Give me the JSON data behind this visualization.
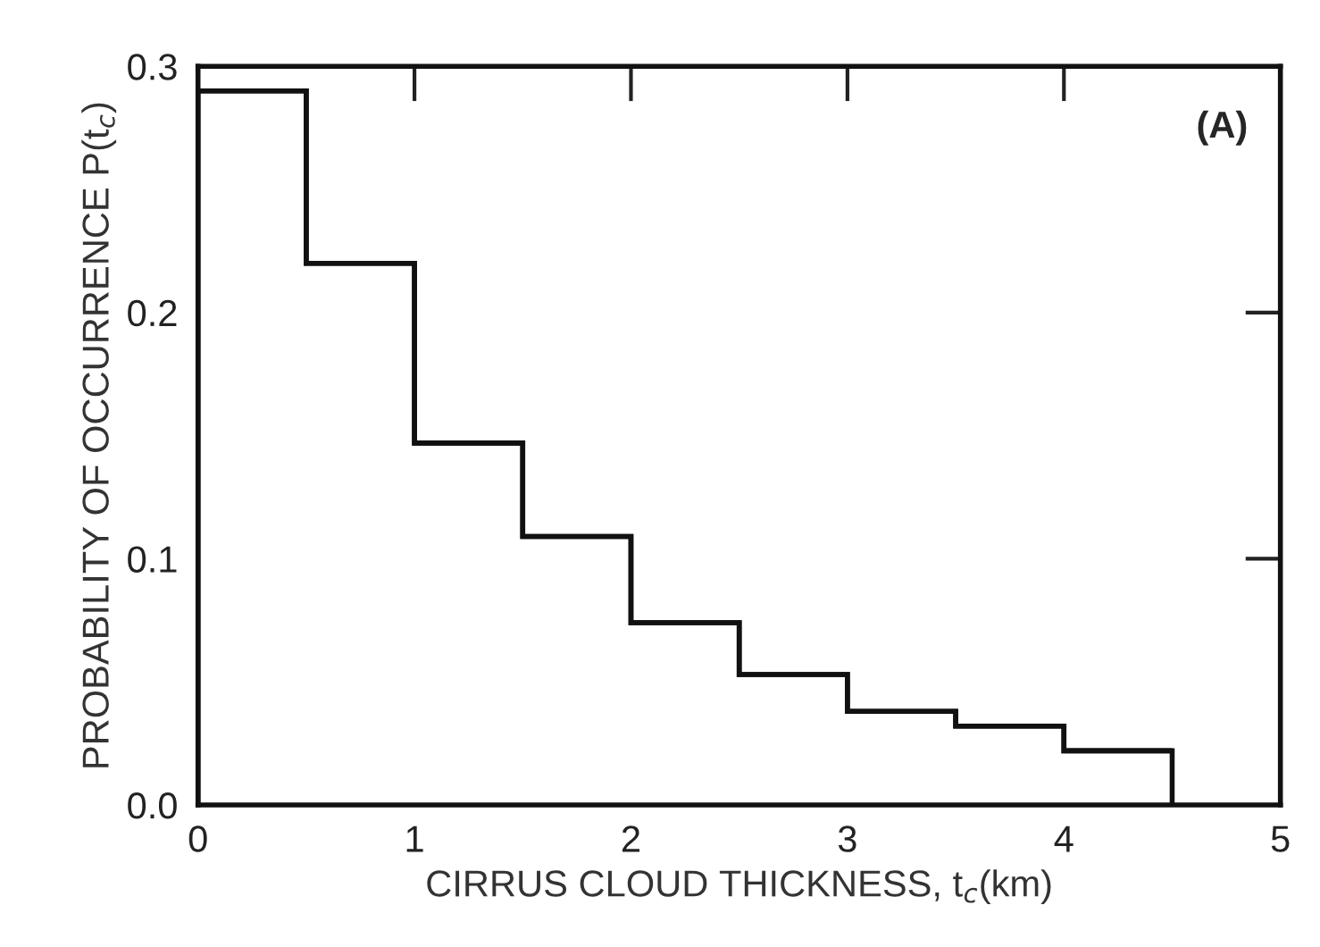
{
  "chart_data": {
    "type": "histogram",
    "xlabel": "CIRRUS CLOUD THICKNESS, t$_{c}$(km)",
    "ylabel": "PROBABILITY OF OCCURRENCE P(t$_{c}$)",
    "annotations": [
      "(A)"
    ],
    "bins": [
      0,
      0.5,
      1,
      1.5,
      2,
      2.5,
      3,
      3.5,
      4,
      4.5
    ],
    "values": [
      0.29,
      0.22,
      0.147,
      0.109,
      0.074,
      0.053,
      0.038,
      0.032,
      0.022
    ],
    "color": "#111111",
    "xlim": [
      0,
      5
    ],
    "xticks": [
      0,
      1,
      2,
      3,
      4,
      5
    ],
    "ylim": [
      0,
      0.3
    ],
    "yticks": [
      {
        "value": 0,
        "label": "0.0"
      },
      {
        "value": 0.1,
        "label": "0.1"
      },
      {
        "value": 0.2,
        "label": "0.2"
      },
      {
        "value": 0.3,
        "label": "0.3"
      }
    ]
  }
}
